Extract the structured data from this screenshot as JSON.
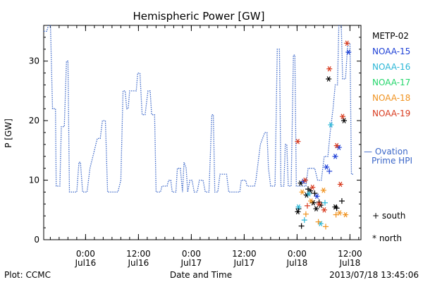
{
  "chart_data": {
    "type": "line",
    "title": "Hemispheric Power [GW]",
    "ylabel": "P [GW]",
    "xlabel": "Date and Time",
    "ylim": [
      0,
      36
    ],
    "xlim": [
      "2013-07-15 14:30",
      "2013-07-18 14:30"
    ],
    "y_ticks": [
      0,
      10,
      20,
      30
    ],
    "x_ticks": [
      {
        "time": "2013-07-16 00:00",
        "top": "0:00",
        "bottom": "Jul16"
      },
      {
        "time": "2013-07-16 12:00",
        "top": "12:00",
        "bottom": "Jul16"
      },
      {
        "time": "2013-07-17 00:00",
        "top": "0:00",
        "bottom": "Jul17"
      },
      {
        "time": "2013-07-17 12:00",
        "top": "12:00",
        "bottom": "Jul17"
      },
      {
        "time": "2013-07-18 00:00",
        "top": "0:00",
        "bottom": "Jul18"
      },
      {
        "time": "2013-07-18 12:00",
        "top": "12:00",
        "bottom": "Jul18"
      }
    ],
    "legend": {
      "placement": "right",
      "entries": [
        {
          "name": "METP-02",
          "color": "#000000"
        },
        {
          "name": "NOAA-15",
          "color": "#1c3fd6"
        },
        {
          "name": "NOAA-16",
          "color": "#29b6d6"
        },
        {
          "name": "NOAA-17",
          "color": "#22d66a"
        },
        {
          "name": "NOAA-18",
          "color": "#f0921e"
        },
        {
          "name": "NOAA-19",
          "color": "#d83a1e"
        }
      ],
      "ovation_line1": "— Ovation",
      "ovation_line2": "Prime HPI",
      "ovation_color": "#3a66c8",
      "south_label": "+ south",
      "north_label": "* north"
    },
    "ovation_series": {
      "name": "Ovation Prime HPI",
      "color": "#3a66c8",
      "points": [
        [
          "2013-07-15 14:30",
          35
        ],
        [
          "2013-07-15 15:10",
          35
        ],
        [
          "2013-07-15 16:00",
          37
        ],
        [
          "2013-07-15 16:30",
          22
        ],
        [
          "2013-07-15 17:10",
          22
        ],
        [
          "2013-07-15 17:20",
          9
        ],
        [
          "2013-07-15 18:10",
          9
        ],
        [
          "2013-07-15 18:30",
          19
        ],
        [
          "2013-07-15 19:10",
          19
        ],
        [
          "2013-07-15 19:40",
          30
        ],
        [
          "2013-07-15 20:00",
          30
        ],
        [
          "2013-07-15 20:20",
          8
        ],
        [
          "2013-07-15 22:00",
          8
        ],
        [
          "2013-07-15 22:30",
          13
        ],
        [
          "2013-07-15 22:50",
          13
        ],
        [
          "2013-07-15 23:20",
          8
        ],
        [
          "2013-07-16 00:00",
          8
        ],
        [
          "2013-07-16 00:20",
          8
        ],
        [
          "2013-07-16 01:00",
          12
        ],
        [
          "2013-07-16 02:00",
          15
        ],
        [
          "2013-07-16 02:40",
          17
        ],
        [
          "2013-07-16 03:20",
          17
        ],
        [
          "2013-07-16 03:50",
          20
        ],
        [
          "2013-07-16 04:30",
          20
        ],
        [
          "2013-07-16 05:00",
          8
        ],
        [
          "2013-07-16 07:20",
          8
        ],
        [
          "2013-07-16 08:00",
          10
        ],
        [
          "2013-07-16 08:30",
          25
        ],
        [
          "2013-07-16 09:00",
          25
        ],
        [
          "2013-07-16 09:20",
          22
        ],
        [
          "2013-07-16 09:40",
          22
        ],
        [
          "2013-07-16 10:00",
          25
        ],
        [
          "2013-07-16 11:00",
          25
        ],
        [
          "2013-07-16 11:30",
          25
        ],
        [
          "2013-07-16 11:50",
          28
        ],
        [
          "2013-07-16 12:20",
          28
        ],
        [
          "2013-07-16 12:50",
          21
        ],
        [
          "2013-07-16 13:30",
          21
        ],
        [
          "2013-07-16 14:10",
          25
        ],
        [
          "2013-07-16 14:40",
          25
        ],
        [
          "2013-07-16 15:00",
          21
        ],
        [
          "2013-07-16 15:40",
          21
        ],
        [
          "2013-07-16 16:00",
          8
        ],
        [
          "2013-07-16 17:00",
          8
        ],
        [
          "2013-07-16 17:20",
          9
        ],
        [
          "2013-07-16 18:30",
          9
        ],
        [
          "2013-07-16 18:50",
          10
        ],
        [
          "2013-07-16 19:20",
          10
        ],
        [
          "2013-07-16 19:40",
          8
        ],
        [
          "2013-07-16 20:30",
          8
        ],
        [
          "2013-07-16 20:50",
          12
        ],
        [
          "2013-07-16 21:30",
          12
        ],
        [
          "2013-07-16 22:00",
          8
        ],
        [
          "2013-07-16 22:20",
          13
        ],
        [
          "2013-07-16 22:50",
          12
        ],
        [
          "2013-07-16 23:10",
          8
        ],
        [
          "2013-07-16 23:40",
          10
        ],
        [
          "2013-07-17 00:10",
          10
        ],
        [
          "2013-07-17 00:40",
          8
        ],
        [
          "2013-07-17 01:20",
          8
        ],
        [
          "2013-07-17 01:50",
          10
        ],
        [
          "2013-07-17 02:40",
          10
        ],
        [
          "2013-07-17 03:10",
          8
        ],
        [
          "2013-07-17 04:00",
          8
        ],
        [
          "2013-07-17 04:40",
          21
        ],
        [
          "2013-07-17 05:00",
          21
        ],
        [
          "2013-07-17 05:20",
          8
        ],
        [
          "2013-07-17 06:00",
          8
        ],
        [
          "2013-07-17 06:30",
          11
        ],
        [
          "2013-07-17 08:00",
          11
        ],
        [
          "2013-07-17 08:30",
          8
        ],
        [
          "2013-07-17 11:00",
          8
        ],
        [
          "2013-07-17 11:20",
          10
        ],
        [
          "2013-07-17 12:20",
          10
        ],
        [
          "2013-07-17 12:40",
          9
        ],
        [
          "2013-07-17 14:20",
          9
        ],
        [
          "2013-07-17 14:40",
          10
        ],
        [
          "2013-07-17 15:40",
          16
        ],
        [
          "2013-07-17 16:40",
          18
        ],
        [
          "2013-07-17 17:10",
          18
        ],
        [
          "2013-07-17 17:30",
          12
        ],
        [
          "2013-07-17 18:00",
          9
        ],
        [
          "2013-07-17 19:00",
          9
        ],
        [
          "2013-07-17 19:30",
          32
        ],
        [
          "2013-07-17 20:00",
          32
        ],
        [
          "2013-07-17 20:20",
          9
        ],
        [
          "2013-07-17 21:00",
          9
        ],
        [
          "2013-07-17 21:20",
          16
        ],
        [
          "2013-07-17 21:40",
          16
        ],
        [
          "2013-07-17 22:00",
          9
        ],
        [
          "2013-07-17 22:40",
          9
        ],
        [
          "2013-07-17 23:10",
          31
        ],
        [
          "2013-07-17 23:30",
          31
        ],
        [
          "2013-07-17 23:50",
          9
        ],
        [
          "2013-07-18 02:00",
          9
        ],
        [
          "2013-07-18 02:30",
          12
        ],
        [
          "2013-07-18 04:00",
          12
        ],
        [
          "2013-07-18 04:40",
          10
        ],
        [
          "2013-07-18 05:30",
          10
        ],
        [
          "2013-07-18 06:10",
          14
        ],
        [
          "2013-07-18 07:00",
          14
        ],
        [
          "2013-07-18 07:30",
          18
        ],
        [
          "2013-07-18 08:10",
          22
        ],
        [
          "2013-07-18 08:40",
          26
        ],
        [
          "2013-07-18 09:10",
          26
        ],
        [
          "2013-07-18 09:30",
          37
        ],
        [
          "2013-07-18 10:00",
          37
        ],
        [
          "2013-07-18 10:20",
          27
        ],
        [
          "2013-07-18 11:00",
          27
        ],
        [
          "2013-07-18 11:30",
          33
        ],
        [
          "2013-07-18 12:00",
          33
        ],
        [
          "2013-07-18 12:20",
          11
        ],
        [
          "2013-07-18 12:50",
          11
        ]
      ]
    },
    "satellite_points": [
      {
        "sat": "METP-02",
        "hemi": "north",
        "t": "2013-07-18 00:10",
        "v": 4.7
      },
      {
        "sat": "METP-02",
        "hemi": "north",
        "t": "2013-07-18 00:50",
        "v": 9.5
      },
      {
        "sat": "METP-02",
        "hemi": "north",
        "t": "2013-07-18 02:10",
        "v": 7.5
      },
      {
        "sat": "METP-02",
        "hemi": "north",
        "t": "2013-07-18 03:00",
        "v": 8.2
      },
      {
        "sat": "METP-02",
        "hemi": "north",
        "t": "2013-07-18 03:40",
        "v": 6.2
      },
      {
        "sat": "METP-02",
        "hemi": "north",
        "t": "2013-07-18 04:20",
        "v": 5.2
      },
      {
        "sat": "METP-02",
        "hemi": "north",
        "t": "2013-07-18 05:20",
        "v": 5.8
      },
      {
        "sat": "METP-02",
        "hemi": "north",
        "t": "2013-07-18 07:10",
        "v": 27
      },
      {
        "sat": "METP-02",
        "hemi": "north",
        "t": "2013-07-18 08:40",
        "v": 5.5
      },
      {
        "sat": "METP-02",
        "hemi": "north",
        "t": "2013-07-18 10:40",
        "v": 20
      },
      {
        "sat": "METP-02",
        "hemi": "south",
        "t": "2013-07-18 00:20",
        "v": 5.2
      },
      {
        "sat": "METP-02",
        "hemi": "south",
        "t": "2013-07-18 01:00",
        "v": 2.3
      },
      {
        "sat": "METP-02",
        "hemi": "south",
        "t": "2013-07-18 02:30",
        "v": 8.5
      },
      {
        "sat": "METP-02",
        "hemi": "south",
        "t": "2013-07-18 04:00",
        "v": 7.8
      },
      {
        "sat": "METP-02",
        "hemi": "south",
        "t": "2013-07-18 05:00",
        "v": 6.3
      },
      {
        "sat": "METP-02",
        "hemi": "south",
        "t": "2013-07-18 09:00",
        "v": 5.3
      },
      {
        "sat": "METP-02",
        "hemi": "south",
        "t": "2013-07-18 10:10",
        "v": 6.5
      },
      {
        "sat": "NOAA-15",
        "hemi": "north",
        "t": "2013-07-18 01:30",
        "v": 9.8
      },
      {
        "sat": "NOAA-15",
        "hemi": "north",
        "t": "2013-07-18 04:30",
        "v": 7.3
      },
      {
        "sat": "NOAA-15",
        "hemi": "north",
        "t": "2013-07-18 06:40",
        "v": 12.2
      },
      {
        "sat": "NOAA-15",
        "hemi": "north",
        "t": "2013-07-18 08:40",
        "v": 14
      },
      {
        "sat": "NOAA-15",
        "hemi": "north",
        "t": "2013-07-18 09:30",
        "v": 15.5
      },
      {
        "sat": "NOAA-15",
        "hemi": "north",
        "t": "2013-07-18 11:40",
        "v": 31.5
      },
      {
        "sat": "NOAA-15",
        "hemi": "south",
        "t": "2013-07-18 07:20",
        "v": 11.5
      },
      {
        "sat": "NOAA-16",
        "hemi": "north",
        "t": "2013-07-18 00:20",
        "v": 5.5
      },
      {
        "sat": "NOAA-16",
        "hemi": "north",
        "t": "2013-07-18 02:40",
        "v": 7.7
      },
      {
        "sat": "NOAA-16",
        "hemi": "north",
        "t": "2013-07-18 05:20",
        "v": 2.7
      },
      {
        "sat": "NOAA-16",
        "hemi": "north",
        "t": "2013-07-18 07:40",
        "v": 19.3
      },
      {
        "sat": "NOAA-16",
        "hemi": "south",
        "t": "2013-07-18 01:40",
        "v": 3.3
      },
      {
        "sat": "NOAA-16",
        "hemi": "south",
        "t": "2013-07-18 06:20",
        "v": 6.2
      },
      {
        "sat": "NOAA-18",
        "hemi": "north",
        "t": "2013-07-18 01:10",
        "v": 8
      },
      {
        "sat": "NOAA-18",
        "hemi": "north",
        "t": "2013-07-18 03:10",
        "v": 6.5
      },
      {
        "sat": "NOAA-18",
        "hemi": "north",
        "t": "2013-07-18 06:00",
        "v": 8.3
      },
      {
        "sat": "NOAA-18",
        "hemi": "north",
        "t": "2013-07-18 09:40",
        "v": 4.5
      },
      {
        "sat": "NOAA-18",
        "hemi": "north",
        "t": "2013-07-18 11:00",
        "v": 4.2
      },
      {
        "sat": "NOAA-18",
        "hemi": "south",
        "t": "2013-07-18 02:00",
        "v": 4.3
      },
      {
        "sat": "NOAA-18",
        "hemi": "south",
        "t": "2013-07-18 04:50",
        "v": 3
      },
      {
        "sat": "NOAA-18",
        "hemi": "south",
        "t": "2013-07-18 06:30",
        "v": 2.2
      },
      {
        "sat": "NOAA-18",
        "hemi": "south",
        "t": "2013-07-18 08:50",
        "v": 4.2
      },
      {
        "sat": "NOAA-19",
        "hemi": "north",
        "t": "2013-07-18 00:10",
        "v": 16.5
      },
      {
        "sat": "NOAA-19",
        "hemi": "north",
        "t": "2013-07-18 01:50",
        "v": 10
      },
      {
        "sat": "NOAA-19",
        "hemi": "north",
        "t": "2013-07-18 03:30",
        "v": 8.8
      },
      {
        "sat": "NOAA-19",
        "hemi": "north",
        "t": "2013-07-18 05:00",
        "v": 6
      },
      {
        "sat": "NOAA-19",
        "hemi": "north",
        "t": "2013-07-18 06:10",
        "v": 5
      },
      {
        "sat": "NOAA-19",
        "hemi": "north",
        "t": "2013-07-18 07:20",
        "v": 28.7
      },
      {
        "sat": "NOAA-19",
        "hemi": "north",
        "t": "2013-07-18 09:00",
        "v": 15.8
      },
      {
        "sat": "NOAA-19",
        "hemi": "north",
        "t": "2013-07-18 09:50",
        "v": 9.3
      },
      {
        "sat": "NOAA-19",
        "hemi": "north",
        "t": "2013-07-18 10:20",
        "v": 20.7
      },
      {
        "sat": "NOAA-19",
        "hemi": "north",
        "t": "2013-07-18 11:20",
        "v": 33
      },
      {
        "sat": "NOAA-19",
        "hemi": "south",
        "t": "2013-07-18 02:20",
        "v": 5.7
      }
    ]
  },
  "footer": {
    "left": "Plot: CCMC",
    "right": "2013/07/18 13:45:06"
  }
}
